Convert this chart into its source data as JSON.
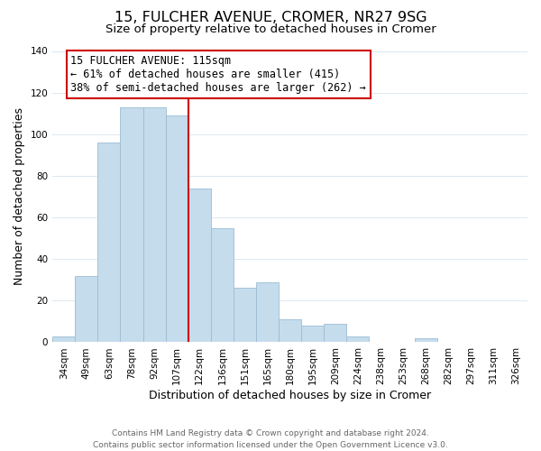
{
  "title": "15, FULCHER AVENUE, CROMER, NR27 9SG",
  "subtitle": "Size of property relative to detached houses in Cromer",
  "xlabel": "Distribution of detached houses by size in Cromer",
  "ylabel": "Number of detached properties",
  "bar_labels": [
    "34sqm",
    "49sqm",
    "63sqm",
    "78sqm",
    "92sqm",
    "107sqm",
    "122sqm",
    "136sqm",
    "151sqm",
    "165sqm",
    "180sqm",
    "195sqm",
    "209sqm",
    "224sqm",
    "238sqm",
    "253sqm",
    "268sqm",
    "282sqm",
    "297sqm",
    "311sqm",
    "326sqm"
  ],
  "bar_values": [
    3,
    32,
    96,
    113,
    113,
    109,
    74,
    55,
    26,
    29,
    11,
    8,
    9,
    3,
    0,
    0,
    2,
    0,
    0,
    0,
    0
  ],
  "bar_color": "#c5dced",
  "bar_edge_color": "#9bbcd4",
  "annotation_line1": "15 FULCHER AVENUE: 115sqm",
  "annotation_line2": "← 61% of detached houses are smaller (415)",
  "annotation_line3": "38% of semi-detached houses are larger (262) →",
  "annotation_box_color": "#ffffff",
  "annotation_box_edge_color": "#cc0000",
  "reference_line_color": "#cc0000",
  "ylim": [
    0,
    140
  ],
  "yticks": [
    0,
    20,
    40,
    60,
    80,
    100,
    120,
    140
  ],
  "footer_line1": "Contains HM Land Registry data © Crown copyright and database right 2024.",
  "footer_line2": "Contains public sector information licensed under the Open Government Licence v3.0.",
  "background_color": "#ffffff",
  "grid_color": "#dce8f0",
  "title_fontsize": 11.5,
  "subtitle_fontsize": 9.5,
  "axis_label_fontsize": 9,
  "tick_fontsize": 7.5,
  "footer_fontsize": 6.5,
  "annotation_fontsize": 8.5
}
